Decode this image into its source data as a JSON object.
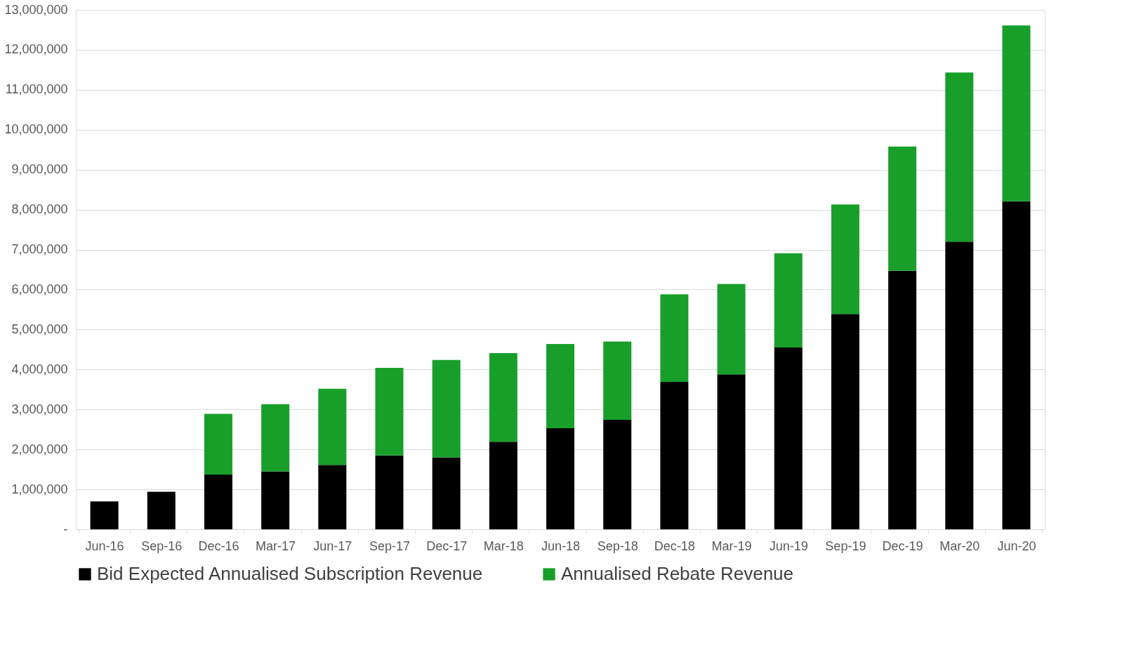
{
  "chart_data": {
    "type": "bar",
    "stacked": true,
    "categories": [
      "Jun-16",
      "Sep-16",
      "Dec-16",
      "Mar-17",
      "Jun-17",
      "Sep-17",
      "Dec-17",
      "Mar-18",
      "Jun-18",
      "Sep-18",
      "Dec-18",
      "Mar-19",
      "Jun-19",
      "Sep-19",
      "Dec-19",
      "Mar-20",
      "Jun-20"
    ],
    "series": [
      {
        "name": "Bid Expected Annualised Subscription Revenue",
        "color": "#000000",
        "values": [
          700000,
          940000,
          1370000,
          1450000,
          1610000,
          1850000,
          1800000,
          2190000,
          2530000,
          2740000,
          3690000,
          3880000,
          4550000,
          5390000,
          6470000,
          7200000,
          8210000
        ]
      },
      {
        "name": "Annualised Rebate Revenue",
        "color": "#189f2a",
        "values": [
          null,
          null,
          1520000,
          1680000,
          1910000,
          2190000,
          2440000,
          2220000,
          2110000,
          1960000,
          2190000,
          2260000,
          2360000,
          2740000,
          3110000,
          4230000,
          4400000
        ]
      }
    ],
    "ylim": [
      0,
      13000000
    ],
    "yticks": [
      {
        "value": 0,
        "label": "-"
      },
      {
        "value": 1000000,
        "label": "1,000,000"
      },
      {
        "value": 2000000,
        "label": "2,000,000"
      },
      {
        "value": 3000000,
        "label": "3,000,000"
      },
      {
        "value": 4000000,
        "label": "4,000,000"
      },
      {
        "value": 5000000,
        "label": "5,000,000"
      },
      {
        "value": 6000000,
        "label": "6,000,000"
      },
      {
        "value": 7000000,
        "label": "7,000,000"
      },
      {
        "value": 8000000,
        "label": "8,000,000"
      },
      {
        "value": 9000000,
        "label": "9,000,000"
      },
      {
        "value": 10000000,
        "label": "10,000,000"
      },
      {
        "value": 11000000,
        "label": "11,000,000"
      },
      {
        "value": 12000000,
        "label": "12,000,000"
      },
      {
        "value": 13000000,
        "label": "13,000,000"
      }
    ],
    "grid": "y",
    "legend": "bottom"
  }
}
